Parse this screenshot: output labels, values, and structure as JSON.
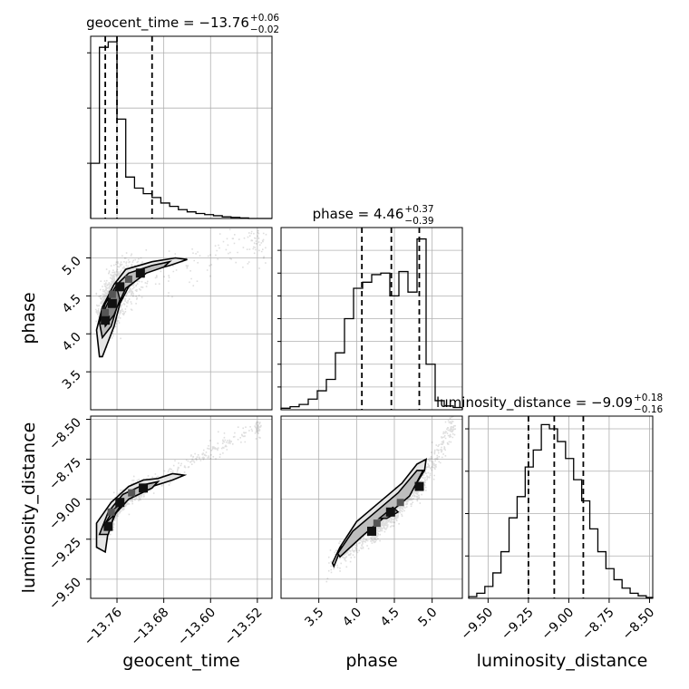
{
  "chart_data": {
    "type": "corner",
    "parameters": [
      "geocent_time",
      "phase",
      "luminosity_distance"
    ],
    "axis_labels": {
      "geocent_time": "geocent_time",
      "phase": "phase",
      "luminosity_distance": "luminosity_distance"
    },
    "ranges": {
      "geocent_time": [
        -13.805,
        -13.495
      ],
      "phase": [
        3.0,
        5.4
      ],
      "luminosity_distance": [
        -9.62,
        -8.48
      ]
    },
    "ticks": {
      "geocent_time": [
        -13.76,
        -13.68,
        -13.6,
        -13.52
      ],
      "phase": [
        3.5,
        4.0,
        4.5,
        5.0
      ],
      "luminosity_distance": [
        -9.5,
        -9.25,
        -9.0,
        -8.75,
        -8.5
      ]
    },
    "tick_labels": {
      "geocent_time": [
        "−13.76",
        "−13.68",
        "−13.60",
        "−13.52"
      ],
      "phase_x": [
        "3.5",
        "4.0",
        "4.5",
        "5.0"
      ],
      "phase_y": [
        "3.5",
        "4.0",
        "4.5",
        "5.0"
      ],
      "luminosity_distance_x": [
        "−9.50",
        "−9.25",
        "−9.00",
        "−8.75",
        "−8.50"
      ],
      "luminosity_distance_y": [
        "−9.50",
        "−9.25",
        "−9.00",
        "−8.75",
        "−8.50"
      ]
    },
    "titles": [
      {
        "param": "geocent_time",
        "main": "geocent_time = −13.76",
        "sup": "+0.06",
        "sub": "−0.02"
      },
      {
        "param": "phase",
        "main": "phase = 4.46",
        "sup": "+0.37",
        "sub": "−0.39"
      },
      {
        "param": "luminosity_distance",
        "main": "luminosity_distance = −9.09",
        "sup": "+0.18",
        "sub": "−0.16"
      }
    ],
    "quantiles": {
      "geocent_time": [
        -13.78,
        -13.76,
        -13.7
      ],
      "phase": [
        4.07,
        4.46,
        4.83
      ],
      "luminosity_distance": [
        -9.25,
        -9.09,
        -8.91
      ]
    },
    "histograms": {
      "geocent_time": {
        "edges": [
          -13.805,
          -13.79,
          -13.775,
          -13.76,
          -13.745,
          -13.73,
          -13.715,
          -13.7,
          -13.685,
          -13.67,
          -13.655,
          -13.64,
          -13.625,
          -13.61,
          -13.595,
          -13.58,
          -13.565,
          -13.55,
          -13.535,
          -13.52,
          -13.505,
          -13.495
        ],
        "counts": [
          100,
          310,
          320,
          180,
          75,
          55,
          45,
          38,
          28,
          22,
          16,
          12,
          9,
          7,
          5,
          3,
          2,
          1,
          0,
          0,
          0
        ]
      },
      "phase": {
        "edges": [
          3.0,
          3.12,
          3.24,
          3.36,
          3.48,
          3.6,
          3.72,
          3.84,
          3.96,
          4.08,
          4.2,
          4.32,
          4.44,
          4.56,
          4.68,
          4.8,
          4.92,
          5.04,
          5.16,
          5.28,
          5.4
        ],
        "counts": [
          2,
          4,
          7,
          14,
          25,
          40,
          75,
          120,
          160,
          168,
          178,
          180,
          150,
          182,
          155,
          225,
          60,
          12,
          5,
          3
        ]
      },
      "luminosity_distance": {
        "edges": [
          -9.62,
          -9.57,
          -9.52,
          -9.47,
          -9.42,
          -9.37,
          -9.32,
          -9.27,
          -9.22,
          -9.17,
          -9.12,
          -9.07,
          -9.02,
          -8.97,
          -8.92,
          -8.87,
          -8.82,
          -8.77,
          -8.72,
          -8.67,
          -8.62,
          -8.57,
          -8.52,
          -8.48
        ],
        "counts": [
          2,
          6,
          14,
          30,
          55,
          95,
          120,
          155,
          175,
          205,
          200,
          185,
          165,
          140,
          115,
          82,
          55,
          35,
          22,
          12,
          6,
          3,
          1
        ]
      }
    },
    "hist_ylim": {
      "geocent_time": [
        0,
        330
      ],
      "phase": [
        0,
        240
      ],
      "luminosity_distance": [
        0,
        215
      ]
    },
    "hist_yticks": {
      "geocent_time": [
        100,
        200,
        300
      ],
      "phase": [
        30,
        60,
        90,
        120,
        150,
        180,
        210
      ],
      "luminosity_distance": [
        50,
        100,
        150,
        200
      ]
    },
    "grid": true,
    "contours": {
      "geocent_time|phase": {
        "outer": [
          [
            -13.79,
            3.7
          ],
          [
            -13.795,
            4.05
          ],
          [
            -13.785,
            4.35
          ],
          [
            -13.765,
            4.65
          ],
          [
            -13.745,
            4.85
          ],
          [
            -13.7,
            4.95
          ],
          [
            -13.66,
            5.0
          ],
          [
            -13.64,
            4.98
          ],
          [
            -13.67,
            4.9
          ],
          [
            -13.71,
            4.82
          ],
          [
            -13.74,
            4.62
          ],
          [
            -13.755,
            4.4
          ],
          [
            -13.765,
            4.1
          ],
          [
            -13.775,
            3.9
          ],
          [
            -13.785,
            3.7
          ]
        ],
        "middle": [
          [
            -13.785,
            3.95
          ],
          [
            -13.79,
            4.15
          ],
          [
            -13.78,
            4.4
          ],
          [
            -13.76,
            4.65
          ],
          [
            -13.74,
            4.8
          ],
          [
            -13.7,
            4.9
          ],
          [
            -13.67,
            4.95
          ],
          [
            -13.68,
            4.88
          ],
          [
            -13.71,
            4.8
          ],
          [
            -13.745,
            4.6
          ],
          [
            -13.76,
            4.35
          ],
          [
            -13.77,
            4.1
          ]
        ],
        "inner": [
          [
            -13.78,
            4.1
          ],
          [
            -13.782,
            4.3
          ],
          [
            -13.77,
            4.5
          ],
          [
            -13.76,
            4.6
          ],
          [
            -13.755,
            4.45
          ],
          [
            -13.765,
            4.25
          ]
        ],
        "dense": [
          [
            -13.78,
            4.18
          ],
          [
            -13.78,
            4.28
          ],
          [
            -13.768,
            4.4
          ],
          [
            -13.768,
            4.52
          ],
          [
            -13.755,
            4.62
          ],
          [
            -13.74,
            4.72
          ],
          [
            -13.72,
            4.8
          ]
        ]
      },
      "geocent_time|luminosity_distance": {
        "outer": [
          [
            -13.795,
            -9.3
          ],
          [
            -13.795,
            -9.15
          ],
          [
            -13.77,
            -9.02
          ],
          [
            -13.74,
            -8.92
          ],
          [
            -13.715,
            -8.88
          ],
          [
            -13.69,
            -8.87
          ],
          [
            -13.665,
            -8.84
          ],
          [
            -13.645,
            -8.85
          ],
          [
            -13.665,
            -8.88
          ],
          [
            -13.7,
            -8.92
          ],
          [
            -13.735,
            -8.98
          ],
          [
            -13.76,
            -9.07
          ],
          [
            -13.775,
            -9.2
          ],
          [
            -13.78,
            -9.33
          ]
        ],
        "middle": [
          [
            -13.79,
            -9.22
          ],
          [
            -13.775,
            -9.08
          ],
          [
            -13.75,
            -8.97
          ],
          [
            -13.715,
            -8.91
          ],
          [
            -13.69,
            -8.89
          ],
          [
            -13.7,
            -8.93
          ],
          [
            -13.74,
            -9.0
          ],
          [
            -13.765,
            -9.1
          ],
          [
            -13.775,
            -9.22
          ]
        ],
        "inner": [
          [
            -13.78,
            -9.15
          ],
          [
            -13.765,
            -9.06
          ],
          [
            -13.75,
            -9.02
          ],
          [
            -13.765,
            -9.1
          ]
        ],
        "dense": [
          [
            -13.775,
            -9.17
          ],
          [
            -13.77,
            -9.08
          ],
          [
            -13.755,
            -9.02
          ],
          [
            -13.735,
            -8.96
          ],
          [
            -13.715,
            -8.93
          ]
        ]
      },
      "phase|luminosity_distance": {
        "outer": [
          [
            3.7,
            -9.42
          ],
          [
            3.8,
            -9.3
          ],
          [
            4.1,
            -9.2
          ],
          [
            4.4,
            -9.1
          ],
          [
            4.7,
            -8.97
          ],
          [
            4.9,
            -8.82
          ],
          [
            4.92,
            -8.75
          ],
          [
            4.8,
            -8.78
          ],
          [
            4.6,
            -8.9
          ],
          [
            4.3,
            -9.02
          ],
          [
            4.0,
            -9.14
          ],
          [
            3.78,
            -9.3
          ],
          [
            3.68,
            -9.4
          ]
        ],
        "middle": [
          [
            3.78,
            -9.36
          ],
          [
            4.1,
            -9.22
          ],
          [
            4.4,
            -9.1
          ],
          [
            4.7,
            -8.98
          ],
          [
            4.88,
            -8.82
          ],
          [
            4.8,
            -8.82
          ],
          [
            4.55,
            -8.96
          ],
          [
            4.25,
            -9.08
          ],
          [
            3.95,
            -9.2
          ],
          [
            3.75,
            -9.34
          ]
        ],
        "inner": [
          [
            4.3,
            -9.12
          ],
          [
            4.48,
            -9.05
          ],
          [
            4.55,
            -9.08
          ],
          [
            4.4,
            -9.12
          ]
        ],
        "dense": [
          [
            4.2,
            -9.2
          ],
          [
            4.27,
            -9.15
          ],
          [
            4.45,
            -9.08
          ],
          [
            4.58,
            -9.02
          ],
          [
            4.83,
            -8.92
          ]
        ]
      }
    },
    "scatter_spread": {
      "geocent_time|phase": 0.07,
      "geocent_time|luminosity_distance": 0.025,
      "phase|luminosity_distance": 0.035
    }
  }
}
